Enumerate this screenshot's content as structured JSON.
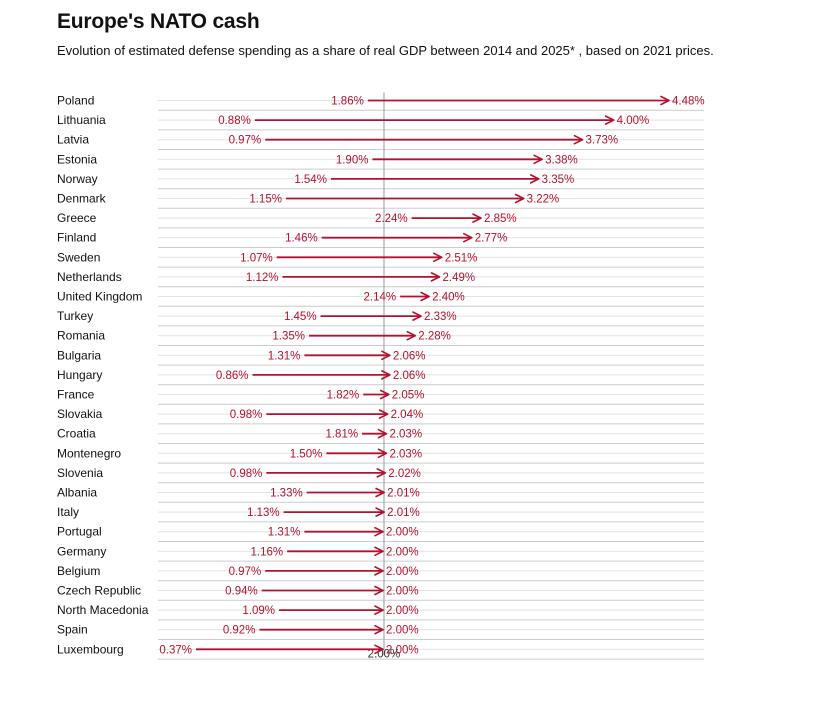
{
  "title": "Europe's NATO cash",
  "subtitle": "Evolution of estimated defense spending as a share of real GDP between 2014 and 2025* , based on 2021 prices.",
  "chart_data": {
    "type": "dumbbell-arrow",
    "title": "Europe's NATO cash",
    "subtitle": "Evolution of estimated defense spending as a share of real GDP between 2014 and 2025* , based on 2021 prices.",
    "series": [
      {
        "name": "2014",
        "role": "start"
      },
      {
        "name": "2025*",
        "role": "end"
      }
    ],
    "unit": "%",
    "xlim": [
      0.37,
      4.48
    ],
    "reference_line": {
      "value": 2.0,
      "label": "2.00%"
    },
    "colors": {
      "accent": "#b3122e",
      "grid": "#cccccc",
      "reference": "#999999",
      "text": "#111111"
    },
    "rows": [
      {
        "country": "Poland",
        "start": 1.86,
        "end": 4.48,
        "start_label": "1.86%",
        "end_label": "4.48%"
      },
      {
        "country": "Lithuania",
        "start": 0.88,
        "end": 4.0,
        "start_label": "0.88%",
        "end_label": "4.00%"
      },
      {
        "country": "Latvia",
        "start": 0.97,
        "end": 3.73,
        "start_label": "0.97%",
        "end_label": "3.73%"
      },
      {
        "country": "Estonia",
        "start": 1.9,
        "end": 3.38,
        "start_label": "1.90%",
        "end_label": "3.38%"
      },
      {
        "country": "Norway",
        "start": 1.54,
        "end": 3.35,
        "start_label": "1.54%",
        "end_label": "3.35%"
      },
      {
        "country": "Denmark",
        "start": 1.15,
        "end": 3.22,
        "start_label": "1.15%",
        "end_label": "3.22%"
      },
      {
        "country": "Greece",
        "start": 2.24,
        "end": 2.85,
        "start_label": "2.24%",
        "end_label": "2.85%"
      },
      {
        "country": "Finland",
        "start": 1.46,
        "end": 2.77,
        "start_label": "1.46%",
        "end_label": "2.77%"
      },
      {
        "country": "Sweden",
        "start": 1.07,
        "end": 2.51,
        "start_label": "1.07%",
        "end_label": "2.51%"
      },
      {
        "country": "Netherlands",
        "start": 1.12,
        "end": 2.49,
        "start_label": "1.12%",
        "end_label": "2.49%"
      },
      {
        "country": "United Kingdom",
        "start": 2.14,
        "end": 2.4,
        "start_label": "2.14%",
        "end_label": "2.40%"
      },
      {
        "country": "Turkey",
        "start": 1.45,
        "end": 2.33,
        "start_label": "1.45%",
        "end_label": "2.33%"
      },
      {
        "country": "Romania",
        "start": 1.35,
        "end": 2.28,
        "start_label": "1.35%",
        "end_label": "2.28%"
      },
      {
        "country": "Bulgaria",
        "start": 1.31,
        "end": 2.06,
        "start_label": "1.31%",
        "end_label": "2.06%"
      },
      {
        "country": "Hungary",
        "start": 0.86,
        "end": 2.06,
        "start_label": "0.86%",
        "end_label": "2.06%"
      },
      {
        "country": "France",
        "start": 1.82,
        "end": 2.05,
        "start_label": "1.82%",
        "end_label": "2.05%"
      },
      {
        "country": "Slovakia",
        "start": 0.98,
        "end": 2.04,
        "start_label": "0.98%",
        "end_label": "2.04%"
      },
      {
        "country": "Croatia",
        "start": 1.81,
        "end": 2.03,
        "start_label": "1.81%",
        "end_label": "2.03%"
      },
      {
        "country": "Montenegro",
        "start": 1.5,
        "end": 2.03,
        "start_label": "1.50%",
        "end_label": "2.03%"
      },
      {
        "country": "Slovenia",
        "start": 0.98,
        "end": 2.02,
        "start_label": "0.98%",
        "end_label": "2.02%"
      },
      {
        "country": "Albania",
        "start": 1.33,
        "end": 2.01,
        "start_label": "1.33%",
        "end_label": "2.01%"
      },
      {
        "country": "Italy",
        "start": 1.13,
        "end": 2.01,
        "start_label": "1.13%",
        "end_label": "2.01%"
      },
      {
        "country": "Portugal",
        "start": 1.31,
        "end": 2.0,
        "start_label": "1.31%",
        "end_label": "2.00%"
      },
      {
        "country": "Germany",
        "start": 1.16,
        "end": 2.0,
        "start_label": "1.16%",
        "end_label": "2.00%"
      },
      {
        "country": "Belgium",
        "start": 0.97,
        "end": 2.0,
        "start_label": "0.97%",
        "end_label": "2.00%"
      },
      {
        "country": "Czech Republic",
        "start": 0.94,
        "end": 2.0,
        "start_label": "0.94%",
        "end_label": "2.00%"
      },
      {
        "country": "North Macedonia",
        "start": 1.09,
        "end": 2.0,
        "start_label": "1.09%",
        "end_label": "2.00%"
      },
      {
        "country": "Spain",
        "start": 0.92,
        "end": 2.0,
        "start_label": "0.92%",
        "end_label": "2.00%"
      },
      {
        "country": "Luxembourg",
        "start": 0.37,
        "end": 2.0,
        "start_label": "0.37%",
        "end_label": "2.00%"
      }
    ]
  }
}
